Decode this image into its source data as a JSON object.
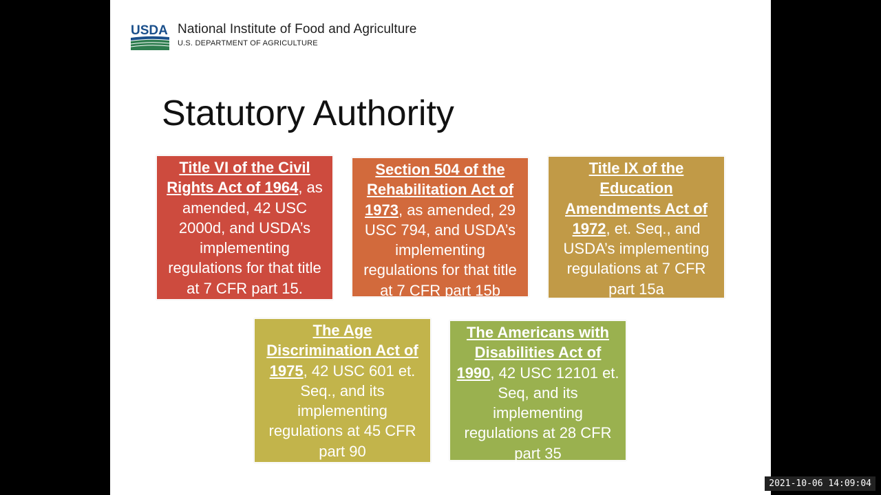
{
  "header": {
    "logo_text": "USDA",
    "org_name": "National Institute of Food and Agriculture",
    "dept_name": "U.S. DEPARTMENT OF AGRICULTURE"
  },
  "slide": {
    "title": "Statutory Authority"
  },
  "boxes": [
    {
      "color": "#cd4b3e",
      "lead": "Title VI of the Civil Rights Act of 1964",
      "rest": ", as amended, 42 USC 2000d, and USDA’s implementing regulations for that title at 7 CFR part 15."
    },
    {
      "color": "#d26a3c",
      "lead": "Section 504 of the Rehabilitation Act of 1973",
      "rest": ", as amended, 29 USC 794, and USDA’s implementing regulations for that title at 7 CFR part 15b"
    },
    {
      "color": "#c19a47",
      "lead": "Title IX of the Education Amendments Act of 1972",
      "rest": ", et. Seq., and USDA’s implementing regulations at 7 CFR part 15a"
    },
    {
      "color": "#c2b44b",
      "lead": "The Age Discrimination Act of 1975",
      "rest": ", 42 USC 601 et. Seq., and its implementing regulations at 45 CFR part 90"
    },
    {
      "color": "#9ab14f",
      "lead": "The Americans with Disabilities Act of 1990",
      "rest": ", 42 USC 12101 et. Seq, and its implementing regulations at 28 CFR part 35"
    }
  ],
  "overlay": {
    "timestamp": "2021-10-06 14:09:04"
  },
  "colors": {
    "usda_blue": "#1a4f8b",
    "usda_green": "#2e7d4f"
  }
}
